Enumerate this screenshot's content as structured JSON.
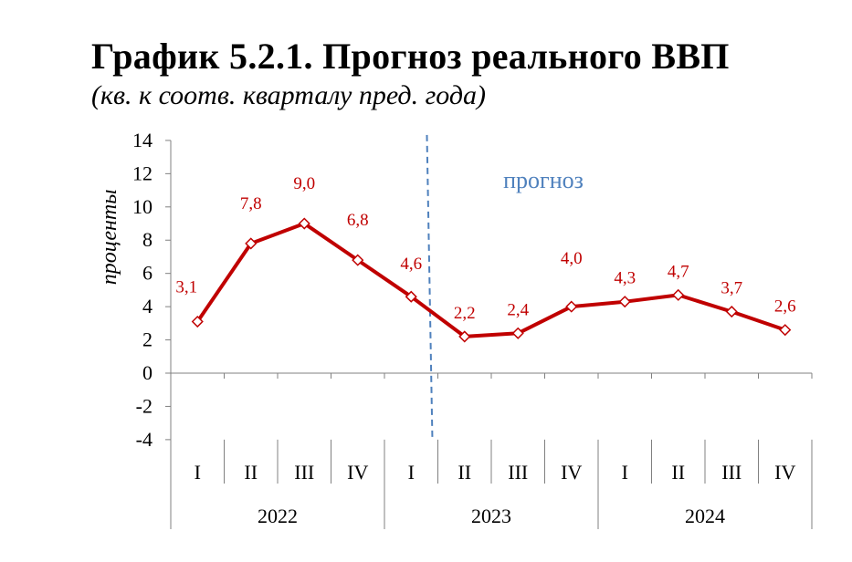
{
  "title": "График 5.2.1. Прогноз реального ВВП",
  "subtitle": "(кв. к соотв. кварталу пред. года)",
  "chart_data": {
    "type": "line",
    "ylabel": "проценты",
    "ylim": [
      -4,
      14
    ],
    "yticks": [
      "14",
      "12",
      "10",
      "8",
      "6",
      "4",
      "2",
      "0",
      "-2",
      "-4"
    ],
    "quarters": [
      "I",
      "II",
      "III",
      "IV",
      "I",
      "II",
      "III",
      "IV",
      "I",
      "II",
      "III",
      "IV"
    ],
    "years": [
      "2022",
      "2023",
      "2024"
    ],
    "values": [
      3.1,
      7.8,
      9.0,
      6.8,
      4.6,
      2.2,
      2.4,
      4.0,
      4.3,
      4.7,
      3.7,
      2.6
    ],
    "labels": [
      "3,1",
      "7,8",
      "9,0",
      "6,8",
      "4,6",
      "2,2",
      "2,4",
      "4,0",
      "4,3",
      "4,7",
      "3,7",
      "2,6"
    ],
    "annotation": "прогноз",
    "colors": {
      "line": "#c00000",
      "labels": "#c00000",
      "forecast_divider": "#4f81bd"
    }
  }
}
